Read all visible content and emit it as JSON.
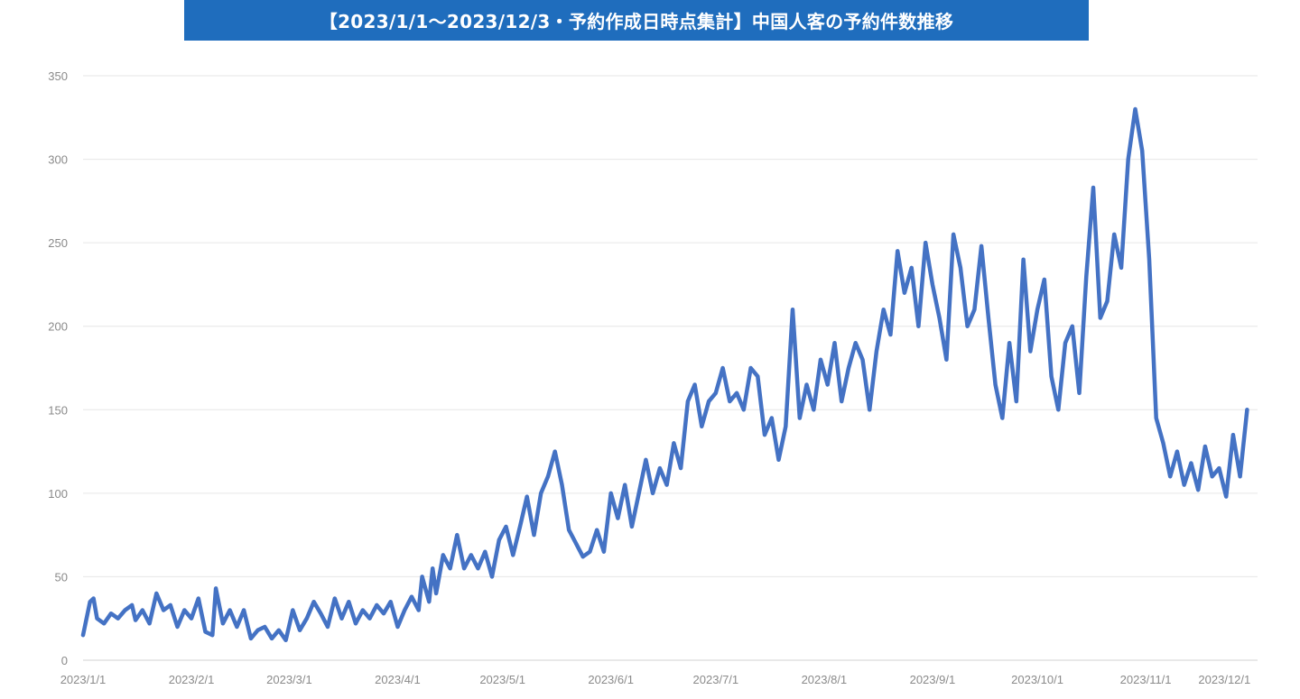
{
  "chart_data": {
    "type": "line",
    "title": "【2023/1/1～2023/12/3・予約作成日時点集計】中国人客の予約件数推移",
    "xlabel": "",
    "ylabel": "",
    "ylim": [
      0,
      350
    ],
    "yticks": [
      "0",
      "50",
      "100",
      "150",
      "200",
      "250",
      "300",
      "350"
    ],
    "xticks": [
      {
        "date": "2023-01-01",
        "label": "2023/1/1"
      },
      {
        "date": "2023-02-01",
        "label": "2023/2/1"
      },
      {
        "date": "2023-03-01",
        "label": "2023/3/1"
      },
      {
        "date": "2023-04-01",
        "label": "2023/4/1"
      },
      {
        "date": "2023-05-01",
        "label": "2023/5/1"
      },
      {
        "date": "2023-06-01",
        "label": "2023/6/1"
      },
      {
        "date": "2023-07-01",
        "label": "2023/7/1"
      },
      {
        "date": "2023-08-01",
        "label": "2023/8/1"
      },
      {
        "date": "2023-09-01",
        "label": "2023/9/1"
      },
      {
        "date": "2023-10-01",
        "label": "2023/10/1"
      },
      {
        "date": "2023-11-01",
        "label": "2023/11/1"
      },
      {
        "date": "2023-12-01",
        "label": "2023/12/1"
      }
    ],
    "x_start": "2023-01-01",
    "x_end": "2023-12-03",
    "grid": true,
    "line_color": "#4472c4",
    "series": [
      {
        "name": "",
        "points": [
          [
            "2023-01-01",
            15
          ],
          [
            "2023-01-03",
            35
          ],
          [
            "2023-01-04",
            37
          ],
          [
            "2023-01-05",
            25
          ],
          [
            "2023-01-07",
            22
          ],
          [
            "2023-01-09",
            28
          ],
          [
            "2023-01-11",
            25
          ],
          [
            "2023-01-13",
            30
          ],
          [
            "2023-01-15",
            33
          ],
          [
            "2023-01-16",
            24
          ],
          [
            "2023-01-18",
            30
          ],
          [
            "2023-01-20",
            22
          ],
          [
            "2023-01-22",
            40
          ],
          [
            "2023-01-24",
            30
          ],
          [
            "2023-01-26",
            33
          ],
          [
            "2023-01-28",
            20
          ],
          [
            "2023-01-30",
            30
          ],
          [
            "2023-02-01",
            25
          ],
          [
            "2023-02-03",
            37
          ],
          [
            "2023-02-05",
            17
          ],
          [
            "2023-02-07",
            15
          ],
          [
            "2023-02-08",
            43
          ],
          [
            "2023-02-10",
            22
          ],
          [
            "2023-02-12",
            30
          ],
          [
            "2023-02-14",
            20
          ],
          [
            "2023-02-16",
            30
          ],
          [
            "2023-02-18",
            13
          ],
          [
            "2023-02-20",
            18
          ],
          [
            "2023-02-22",
            20
          ],
          [
            "2023-02-24",
            13
          ],
          [
            "2023-02-26",
            18
          ],
          [
            "2023-02-28",
            12
          ],
          [
            "2023-03-02",
            30
          ],
          [
            "2023-03-04",
            18
          ],
          [
            "2023-03-06",
            25
          ],
          [
            "2023-03-08",
            35
          ],
          [
            "2023-03-10",
            28
          ],
          [
            "2023-03-12",
            20
          ],
          [
            "2023-03-14",
            37
          ],
          [
            "2023-03-16",
            25
          ],
          [
            "2023-03-18",
            35
          ],
          [
            "2023-03-20",
            22
          ],
          [
            "2023-03-22",
            30
          ],
          [
            "2023-03-24",
            25
          ],
          [
            "2023-03-26",
            33
          ],
          [
            "2023-03-28",
            28
          ],
          [
            "2023-03-30",
            35
          ],
          [
            "2023-04-01",
            20
          ],
          [
            "2023-04-03",
            30
          ],
          [
            "2023-04-05",
            38
          ],
          [
            "2023-04-07",
            30
          ],
          [
            "2023-04-08",
            50
          ],
          [
            "2023-04-10",
            35
          ],
          [
            "2023-04-11",
            55
          ],
          [
            "2023-04-12",
            40
          ],
          [
            "2023-04-14",
            63
          ],
          [
            "2023-04-16",
            55
          ],
          [
            "2023-04-18",
            75
          ],
          [
            "2023-04-20",
            55
          ],
          [
            "2023-04-22",
            63
          ],
          [
            "2023-04-24",
            55
          ],
          [
            "2023-04-26",
            65
          ],
          [
            "2023-04-28",
            50
          ],
          [
            "2023-04-30",
            72
          ],
          [
            "2023-05-02",
            80
          ],
          [
            "2023-05-04",
            63
          ],
          [
            "2023-05-06",
            80
          ],
          [
            "2023-05-08",
            98
          ],
          [
            "2023-05-10",
            75
          ],
          [
            "2023-05-12",
            100
          ],
          [
            "2023-05-14",
            110
          ],
          [
            "2023-05-16",
            125
          ],
          [
            "2023-05-18",
            105
          ],
          [
            "2023-05-20",
            78
          ],
          [
            "2023-05-22",
            70
          ],
          [
            "2023-05-24",
            62
          ],
          [
            "2023-05-26",
            65
          ],
          [
            "2023-05-28",
            78
          ],
          [
            "2023-05-30",
            65
          ],
          [
            "2023-06-01",
            100
          ],
          [
            "2023-06-03",
            85
          ],
          [
            "2023-06-05",
            105
          ],
          [
            "2023-06-07",
            80
          ],
          [
            "2023-06-09",
            100
          ],
          [
            "2023-06-11",
            120
          ],
          [
            "2023-06-13",
            100
          ],
          [
            "2023-06-15",
            115
          ],
          [
            "2023-06-17",
            105
          ],
          [
            "2023-06-19",
            130
          ],
          [
            "2023-06-21",
            115
          ],
          [
            "2023-06-23",
            155
          ],
          [
            "2023-06-25",
            165
          ],
          [
            "2023-06-27",
            140
          ],
          [
            "2023-06-29",
            155
          ],
          [
            "2023-07-01",
            160
          ],
          [
            "2023-07-03",
            175
          ],
          [
            "2023-07-05",
            155
          ],
          [
            "2023-07-07",
            160
          ],
          [
            "2023-07-09",
            150
          ],
          [
            "2023-07-11",
            175
          ],
          [
            "2023-07-13",
            170
          ],
          [
            "2023-07-15",
            135
          ],
          [
            "2023-07-17",
            145
          ],
          [
            "2023-07-19",
            120
          ],
          [
            "2023-07-21",
            140
          ],
          [
            "2023-07-23",
            210
          ],
          [
            "2023-07-25",
            145
          ],
          [
            "2023-07-27",
            165
          ],
          [
            "2023-07-29",
            150
          ],
          [
            "2023-07-31",
            180
          ],
          [
            "2023-08-02",
            165
          ],
          [
            "2023-08-04",
            190
          ],
          [
            "2023-08-06",
            155
          ],
          [
            "2023-08-08",
            175
          ],
          [
            "2023-08-10",
            190
          ],
          [
            "2023-08-12",
            180
          ],
          [
            "2023-08-14",
            150
          ],
          [
            "2023-08-16",
            185
          ],
          [
            "2023-08-18",
            210
          ],
          [
            "2023-08-20",
            195
          ],
          [
            "2023-08-22",
            245
          ],
          [
            "2023-08-24",
            220
          ],
          [
            "2023-08-26",
            235
          ],
          [
            "2023-08-28",
            200
          ],
          [
            "2023-08-30",
            250
          ],
          [
            "2023-09-01",
            225
          ],
          [
            "2023-09-03",
            205
          ],
          [
            "2023-09-05",
            180
          ],
          [
            "2023-09-07",
            255
          ],
          [
            "2023-09-09",
            235
          ],
          [
            "2023-09-11",
            200
          ],
          [
            "2023-09-13",
            210
          ],
          [
            "2023-09-15",
            248
          ],
          [
            "2023-09-17",
            205
          ],
          [
            "2023-09-19",
            165
          ],
          [
            "2023-09-21",
            145
          ],
          [
            "2023-09-23",
            190
          ],
          [
            "2023-09-25",
            155
          ],
          [
            "2023-09-27",
            240
          ],
          [
            "2023-09-29",
            185
          ],
          [
            "2023-10-01",
            210
          ],
          [
            "2023-10-03",
            228
          ],
          [
            "2023-10-05",
            170
          ],
          [
            "2023-10-07",
            150
          ],
          [
            "2023-10-09",
            190
          ],
          [
            "2023-10-11",
            200
          ],
          [
            "2023-10-13",
            160
          ],
          [
            "2023-10-15",
            230
          ],
          [
            "2023-10-17",
            283
          ],
          [
            "2023-10-19",
            205
          ],
          [
            "2023-10-21",
            215
          ],
          [
            "2023-10-23",
            255
          ],
          [
            "2023-10-25",
            235
          ],
          [
            "2023-10-27",
            300
          ],
          [
            "2023-10-29",
            330
          ],
          [
            "2023-10-31",
            305
          ],
          [
            "2023-11-02",
            240
          ],
          [
            "2023-11-04",
            145
          ],
          [
            "2023-11-06",
            130
          ],
          [
            "2023-11-08",
            110
          ],
          [
            "2023-11-10",
            125
          ],
          [
            "2023-11-12",
            105
          ],
          [
            "2023-11-14",
            118
          ],
          [
            "2023-11-16",
            102
          ],
          [
            "2023-11-18",
            128
          ],
          [
            "2023-11-20",
            110
          ],
          [
            "2023-11-22",
            115
          ],
          [
            "2023-11-24",
            98
          ],
          [
            "2023-11-26",
            135
          ],
          [
            "2023-11-28",
            110
          ],
          [
            "2023-11-30",
            150
          ]
        ]
      }
    ]
  }
}
